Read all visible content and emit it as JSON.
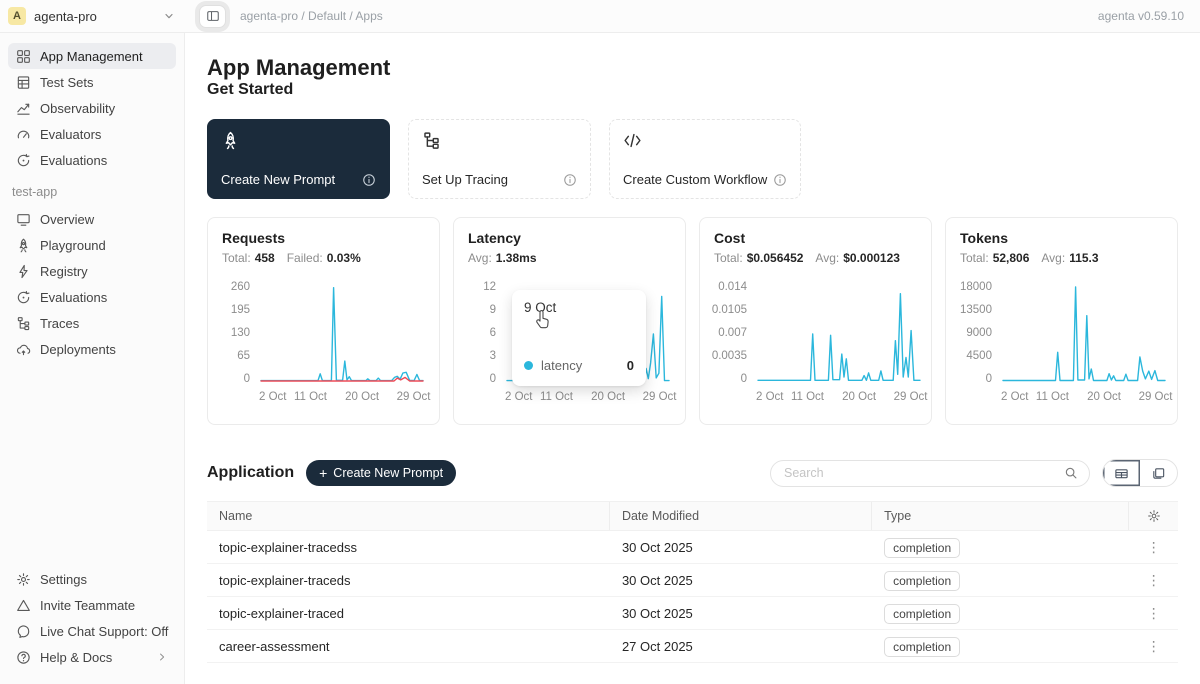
{
  "topbar": {
    "avatar_letter": "A",
    "workspace": "agenta-pro",
    "breadcrumb": "agenta-pro / Default / Apps",
    "version": "agenta v0.59.10"
  },
  "sidebar": {
    "main_items": [
      {
        "label": "App Management",
        "icon": "grid-icon",
        "active": true
      },
      {
        "label": "Test Sets",
        "icon": "test-sets-icon"
      },
      {
        "label": "Observability",
        "icon": "observability-icon"
      },
      {
        "label": "Evaluators",
        "icon": "gauge-icon"
      },
      {
        "label": "Evaluations",
        "icon": "evaluations-icon"
      }
    ],
    "section_label": "test-app",
    "app_items": [
      {
        "label": "Overview",
        "icon": "monitor-icon"
      },
      {
        "label": "Playground",
        "icon": "rocket-icon"
      },
      {
        "label": "Registry",
        "icon": "bolt-icon"
      },
      {
        "label": "Evaluations",
        "icon": "evaluations-icon"
      },
      {
        "label": "Traces",
        "icon": "traces-icon"
      },
      {
        "label": "Deployments",
        "icon": "cloud-icon"
      }
    ],
    "footer_items": [
      {
        "label": "Settings",
        "icon": "gear-icon"
      },
      {
        "label": "Invite Teammate",
        "icon": "invite-icon"
      },
      {
        "label": "Live Chat Support: Off",
        "icon": "chat-icon"
      },
      {
        "label": "Help & Docs",
        "icon": "help-icon",
        "chevron": true
      }
    ]
  },
  "main": {
    "title": "App Management",
    "get_started": {
      "title": "Get Started",
      "cards": [
        {
          "label": "Create New Prompt",
          "icon": "rocket-icon",
          "dark": true
        },
        {
          "label": "Set Up Tracing",
          "icon": "traces-icon",
          "dark": false
        },
        {
          "label": "Create Custom Workflow",
          "icon": "code-icon",
          "dark": false
        }
      ]
    },
    "application": {
      "title": "Application",
      "create_button_label": "Create New Prompt",
      "search_placeholder": "Search"
    },
    "table": {
      "columns": [
        "Name",
        "Date Modified",
        "Type"
      ],
      "rows": [
        {
          "name": "topic-explainer-tracedss",
          "date": "30 Oct 2025",
          "type": "completion"
        },
        {
          "name": "topic-explainer-traceds",
          "date": "30 Oct 2025",
          "type": "completion"
        },
        {
          "name": "topic-explainer-traced",
          "date": "30 Oct 2025",
          "type": "completion"
        },
        {
          "name": "career-assessment",
          "date": "27 Oct 2025",
          "type": "completion"
        }
      ]
    }
  },
  "chart_data": [
    {
      "type": "line",
      "title": "Requests",
      "stats": [
        {
          "label": "Total:",
          "value": "458"
        },
        {
          "label": "Failed:",
          "value": "0.03%"
        }
      ],
      "ylim": 260,
      "y_ticks": [
        "260",
        "195",
        "130",
        "65",
        "0"
      ],
      "x_ticks": [
        {
          "day": 2,
          "label": "2 Oct"
        },
        {
          "day": 11,
          "label": "11 Oct"
        },
        {
          "day": 20,
          "label": "20 Oct"
        },
        {
          "day": 29,
          "label": "29 Oct"
        }
      ],
      "series": [
        {
          "name": "requests",
          "color": "#2bb7dc",
          "points": [
            [
              2,
              1
            ],
            [
              12.2,
              1
            ],
            [
              12.6,
              20
            ],
            [
              13,
              1
            ],
            [
              14.6,
              1
            ],
            [
              15,
              258
            ],
            [
              15.5,
              2
            ],
            [
              16.6,
              2
            ],
            [
              17,
              55
            ],
            [
              17.4,
              3
            ],
            [
              17.8,
              12
            ],
            [
              18.2,
              1
            ],
            [
              20.8,
              1
            ],
            [
              21.1,
              6
            ],
            [
              21.5,
              1
            ],
            [
              22.6,
              1
            ],
            [
              23,
              8
            ],
            [
              23.4,
              1
            ],
            [
              25.4,
              1
            ],
            [
              25.9,
              10
            ],
            [
              26.4,
              13
            ],
            [
              26.9,
              5
            ],
            [
              27.4,
              22
            ],
            [
              28,
              24
            ],
            [
              28.6,
              2
            ],
            [
              29.4,
              1
            ],
            [
              29.9,
              18
            ],
            [
              30.4,
              1
            ],
            [
              31,
              1
            ]
          ]
        },
        {
          "name": "failed",
          "color": "#ef4a56",
          "points": [
            [
              2,
              0
            ],
            [
              25.8,
              0
            ],
            [
              26.4,
              8
            ],
            [
              27,
              3
            ],
            [
              27.8,
              10
            ],
            [
              28.6,
              0
            ],
            [
              31,
              0
            ]
          ]
        }
      ]
    },
    {
      "type": "line",
      "title": "Latency",
      "stats": [
        {
          "label": "Avg:",
          "value": "1.38ms"
        }
      ],
      "ylim": 12,
      "y_ticks": [
        "12",
        "9",
        "6",
        "3",
        "0"
      ],
      "x_ticks": [
        {
          "day": 2,
          "label": "2 Oct"
        },
        {
          "day": 11,
          "label": "11 Oct"
        },
        {
          "day": 20,
          "label": "20 Oct"
        },
        {
          "day": 29,
          "label": "29 Oct"
        }
      ],
      "series": [
        {
          "name": "latency",
          "color": "#2bb7dc",
          "points": [
            [
              2,
              0.05
            ],
            [
              10.8,
              0.05
            ],
            [
              11.2,
              0.85
            ],
            [
              12.4,
              0.85
            ],
            [
              12.7,
              0.05
            ],
            [
              13.3,
              0.05
            ],
            [
              13.6,
              0.85
            ],
            [
              15.3,
              0.85
            ],
            [
              15.6,
              0.05
            ],
            [
              16.3,
              0.05
            ],
            [
              16.6,
              0.85
            ],
            [
              17.3,
              0.85
            ],
            [
              17.6,
              0.05
            ],
            [
              18.8,
              0.05
            ],
            [
              19.1,
              0.85
            ],
            [
              19.9,
              0.85
            ],
            [
              20.2,
              0.05
            ],
            [
              20.8,
              0.05
            ],
            [
              21.1,
              0.85
            ],
            [
              22.3,
              0.85
            ],
            [
              22.6,
              0.05
            ],
            [
              23.3,
              0.05
            ],
            [
              23.6,
              0.85
            ],
            [
              24.3,
              0.85
            ],
            [
              24.6,
              0.05
            ],
            [
              25.3,
              0.05
            ],
            [
              25.6,
              0.85
            ],
            [
              26.3,
              0.85
            ],
            [
              26.6,
              0.05
            ],
            [
              26.9,
              1.6
            ],
            [
              27.3,
              0.3
            ],
            [
              27.7,
              2.3
            ],
            [
              28.2,
              6
            ],
            [
              28.7,
              0.4
            ],
            [
              29.2,
              1
            ],
            [
              29.7,
              10.8
            ],
            [
              30.2,
              0.05
            ],
            [
              31,
              0.05
            ]
          ],
          "marker": {
            "day": 9,
            "value": 0.05
          }
        }
      ],
      "tooltip": {
        "title": "9 Oct",
        "series": "latency",
        "value": "0"
      }
    },
    {
      "type": "line",
      "title": "Cost",
      "stats": [
        {
          "label": "Total:",
          "value": "$0.056452"
        },
        {
          "label": "Avg:",
          "value": "$0.000123"
        }
      ],
      "ylim": 0.014,
      "y_ticks": [
        "0.014",
        "0.0105",
        "0.007",
        "0.0035",
        "0"
      ],
      "x_ticks": [
        {
          "day": 2,
          "label": "2 Oct"
        },
        {
          "day": 11,
          "label": "11 Oct"
        },
        {
          "day": 20,
          "label": "20 Oct"
        },
        {
          "day": 29,
          "label": "29 Oct"
        }
      ],
      "series": [
        {
          "name": "cost",
          "color": "#2bb7dc",
          "points": [
            [
              2,
              0.0001
            ],
            [
              11.4,
              0.0001
            ],
            [
              11.8,
              0.007
            ],
            [
              12.2,
              0.0001
            ],
            [
              14.6,
              0.0001
            ],
            [
              15,
              0.0068
            ],
            [
              15.4,
              0.0002
            ],
            [
              16.6,
              0.0002
            ],
            [
              17,
              0.004
            ],
            [
              17.4,
              0.0006
            ],
            [
              17.8,
              0.0033
            ],
            [
              18.2,
              0.0001
            ],
            [
              20.6,
              0.0001
            ],
            [
              21,
              0.0008
            ],
            [
              21.4,
              0.0001
            ],
            [
              21.8,
              0.0012
            ],
            [
              22.2,
              0.0001
            ],
            [
              23.6,
              0.0001
            ],
            [
              24,
              0.0015
            ],
            [
              24.4,
              0.0001
            ],
            [
              26.2,
              0.0001
            ],
            [
              26.6,
              0.006
            ],
            [
              27,
              0.001
            ],
            [
              27.5,
              0.013
            ],
            [
              28,
              0.0006
            ],
            [
              28.5,
              0.0035
            ],
            [
              28.9,
              0.0006
            ],
            [
              29.4,
              0.0075
            ],
            [
              29.9,
              0.0001
            ],
            [
              31,
              0.0001
            ]
          ]
        }
      ]
    },
    {
      "type": "line",
      "title": "Tokens",
      "stats": [
        {
          "label": "Total:",
          "value": "52,806"
        },
        {
          "label": "Avg:",
          "value": "115.3"
        }
      ],
      "ylim": 18000,
      "y_ticks": [
        "18000",
        "13500",
        "9000",
        "4500",
        "0"
      ],
      "x_ticks": [
        {
          "day": 2,
          "label": "2 Oct"
        },
        {
          "day": 11,
          "label": "11 Oct"
        },
        {
          "day": 20,
          "label": "20 Oct"
        },
        {
          "day": 29,
          "label": "29 Oct"
        }
      ],
      "series": [
        {
          "name": "tokens",
          "color": "#2bb7dc",
          "points": [
            [
              2,
              100
            ],
            [
              11.4,
              100
            ],
            [
              11.8,
              5500
            ],
            [
              12.2,
              100
            ],
            [
              14.6,
              100
            ],
            [
              15,
              18000
            ],
            [
              15.4,
              200
            ],
            [
              16.6,
              200
            ],
            [
              17,
              12500
            ],
            [
              17.4,
              400
            ],
            [
              17.8,
              2300
            ],
            [
              18.2,
              100
            ],
            [
              20.6,
              100
            ],
            [
              21,
              1400
            ],
            [
              21.4,
              200
            ],
            [
              21.8,
              1000
            ],
            [
              22.2,
              100
            ],
            [
              23.6,
              100
            ],
            [
              24,
              1300
            ],
            [
              24.4,
              100
            ],
            [
              26.1,
              100
            ],
            [
              26.5,
              4600
            ],
            [
              27,
              1900
            ],
            [
              27.5,
              400
            ],
            [
              28.1,
              1900
            ],
            [
              28.6,
              300
            ],
            [
              29.2,
              2000
            ],
            [
              29.7,
              100
            ],
            [
              31,
              100
            ]
          ]
        }
      ]
    }
  ],
  "colors": {
    "accent_dark": "#1b2b3b",
    "chart_line": "#2bb7dc",
    "chart_failed": "#ef4a56",
    "avatar_bg": "#f7e8a4"
  }
}
